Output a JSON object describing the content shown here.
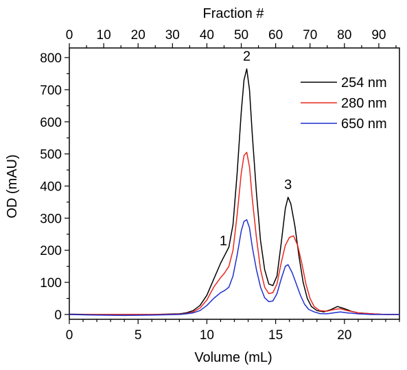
{
  "chart_data": {
    "type": "line",
    "xlabel": "Volume (mL)",
    "ylabel": "OD (mAU)",
    "top_axis_label": "Fraction #",
    "xlim": [
      0,
      24
    ],
    "ylim": [
      -15,
      830
    ],
    "top_axis_lim": [
      0,
      96
    ],
    "x_ticks": [
      0,
      5,
      10,
      15,
      20
    ],
    "y_ticks": [
      0,
      100,
      200,
      300,
      400,
      500,
      600,
      700,
      800
    ],
    "top_ticks": [
      0,
      10,
      20,
      30,
      40,
      50,
      60,
      70,
      80,
      90
    ],
    "legend_position": "top-right",
    "series": [
      {
        "name": "254 nm",
        "color": "#000000",
        "x": [
          0,
          2,
          4,
          6,
          8,
          8.5,
          9,
          9.5,
          10,
          10.5,
          11,
          11.3,
          11.6,
          11.9,
          12.2,
          12.5,
          12.7,
          12.9,
          13.1,
          13.3,
          13.6,
          13.9,
          14.2,
          14.5,
          14.8,
          15.1,
          15.4,
          15.7,
          15.9,
          16.1,
          16.4,
          16.7,
          17,
          17.3,
          17.6,
          18,
          18.5,
          19,
          19.5,
          20,
          20.5,
          21,
          22,
          23,
          24
        ],
        "values": [
          1,
          0,
          0,
          0,
          2,
          5,
          12,
          28,
          60,
          110,
          160,
          185,
          210,
          280,
          440,
          630,
          730,
          765,
          700,
          560,
          380,
          230,
          140,
          95,
          90,
          120,
          220,
          330,
          365,
          345,
          275,
          180,
          100,
          50,
          25,
          12,
          8,
          15,
          25,
          18,
          10,
          5,
          2,
          0,
          0
        ]
      },
      {
        "name": "280 nm",
        "color": "#e8261c",
        "x": [
          0,
          2,
          4,
          6,
          8,
          8.5,
          9,
          9.5,
          10,
          10.5,
          11,
          11.3,
          11.6,
          11.9,
          12.2,
          12.5,
          12.7,
          12.9,
          13.1,
          13.3,
          13.6,
          13.9,
          14.2,
          14.5,
          14.8,
          15.1,
          15.4,
          15.7,
          16,
          16.3,
          16.6,
          16.9,
          17.2,
          17.5,
          17.8,
          18.2,
          18.7,
          19.2,
          19.7,
          20.2,
          21,
          22,
          23,
          24
        ],
        "values": [
          0,
          0,
          0,
          0,
          1,
          3,
          8,
          20,
          45,
          85,
          115,
          130,
          150,
          200,
          310,
          440,
          495,
          505,
          460,
          360,
          240,
          140,
          85,
          65,
          68,
          95,
          160,
          215,
          240,
          245,
          215,
          160,
          95,
          50,
          25,
          12,
          10,
          15,
          18,
          12,
          5,
          2,
          0,
          0
        ]
      },
      {
        "name": "650 nm",
        "color": "#1d2fd0",
        "x": [
          0,
          2,
          4,
          6,
          8,
          8.5,
          9,
          9.5,
          10,
          10.5,
          11,
          11.3,
          11.6,
          11.9,
          12.2,
          12.5,
          12.7,
          12.9,
          13.1,
          13.3,
          13.6,
          13.9,
          14.2,
          14.5,
          14.8,
          15.1,
          15.4,
          15.7,
          15.9,
          16.2,
          16.5,
          16.8,
          17.1,
          17.4,
          17.8,
          18.2,
          18.7,
          19.2,
          19.7,
          20.2,
          21,
          22,
          23,
          24
        ],
        "values": [
          0,
          -2,
          -3,
          -2,
          0,
          2,
          5,
          12,
          28,
          50,
          68,
          75,
          85,
          120,
          185,
          260,
          290,
          295,
          270,
          210,
          140,
          85,
          52,
          40,
          42,
          65,
          110,
          150,
          155,
          130,
          95,
          60,
          32,
          16,
          8,
          3,
          2,
          5,
          8,
          5,
          2,
          0,
          0,
          0
        ]
      }
    ],
    "annotations": [
      {
        "text": "1",
        "x": 11.2,
        "y": 215
      },
      {
        "text": "2",
        "x": 12.9,
        "y": 790
      },
      {
        "text": "3",
        "x": 15.9,
        "y": 390
      }
    ]
  }
}
